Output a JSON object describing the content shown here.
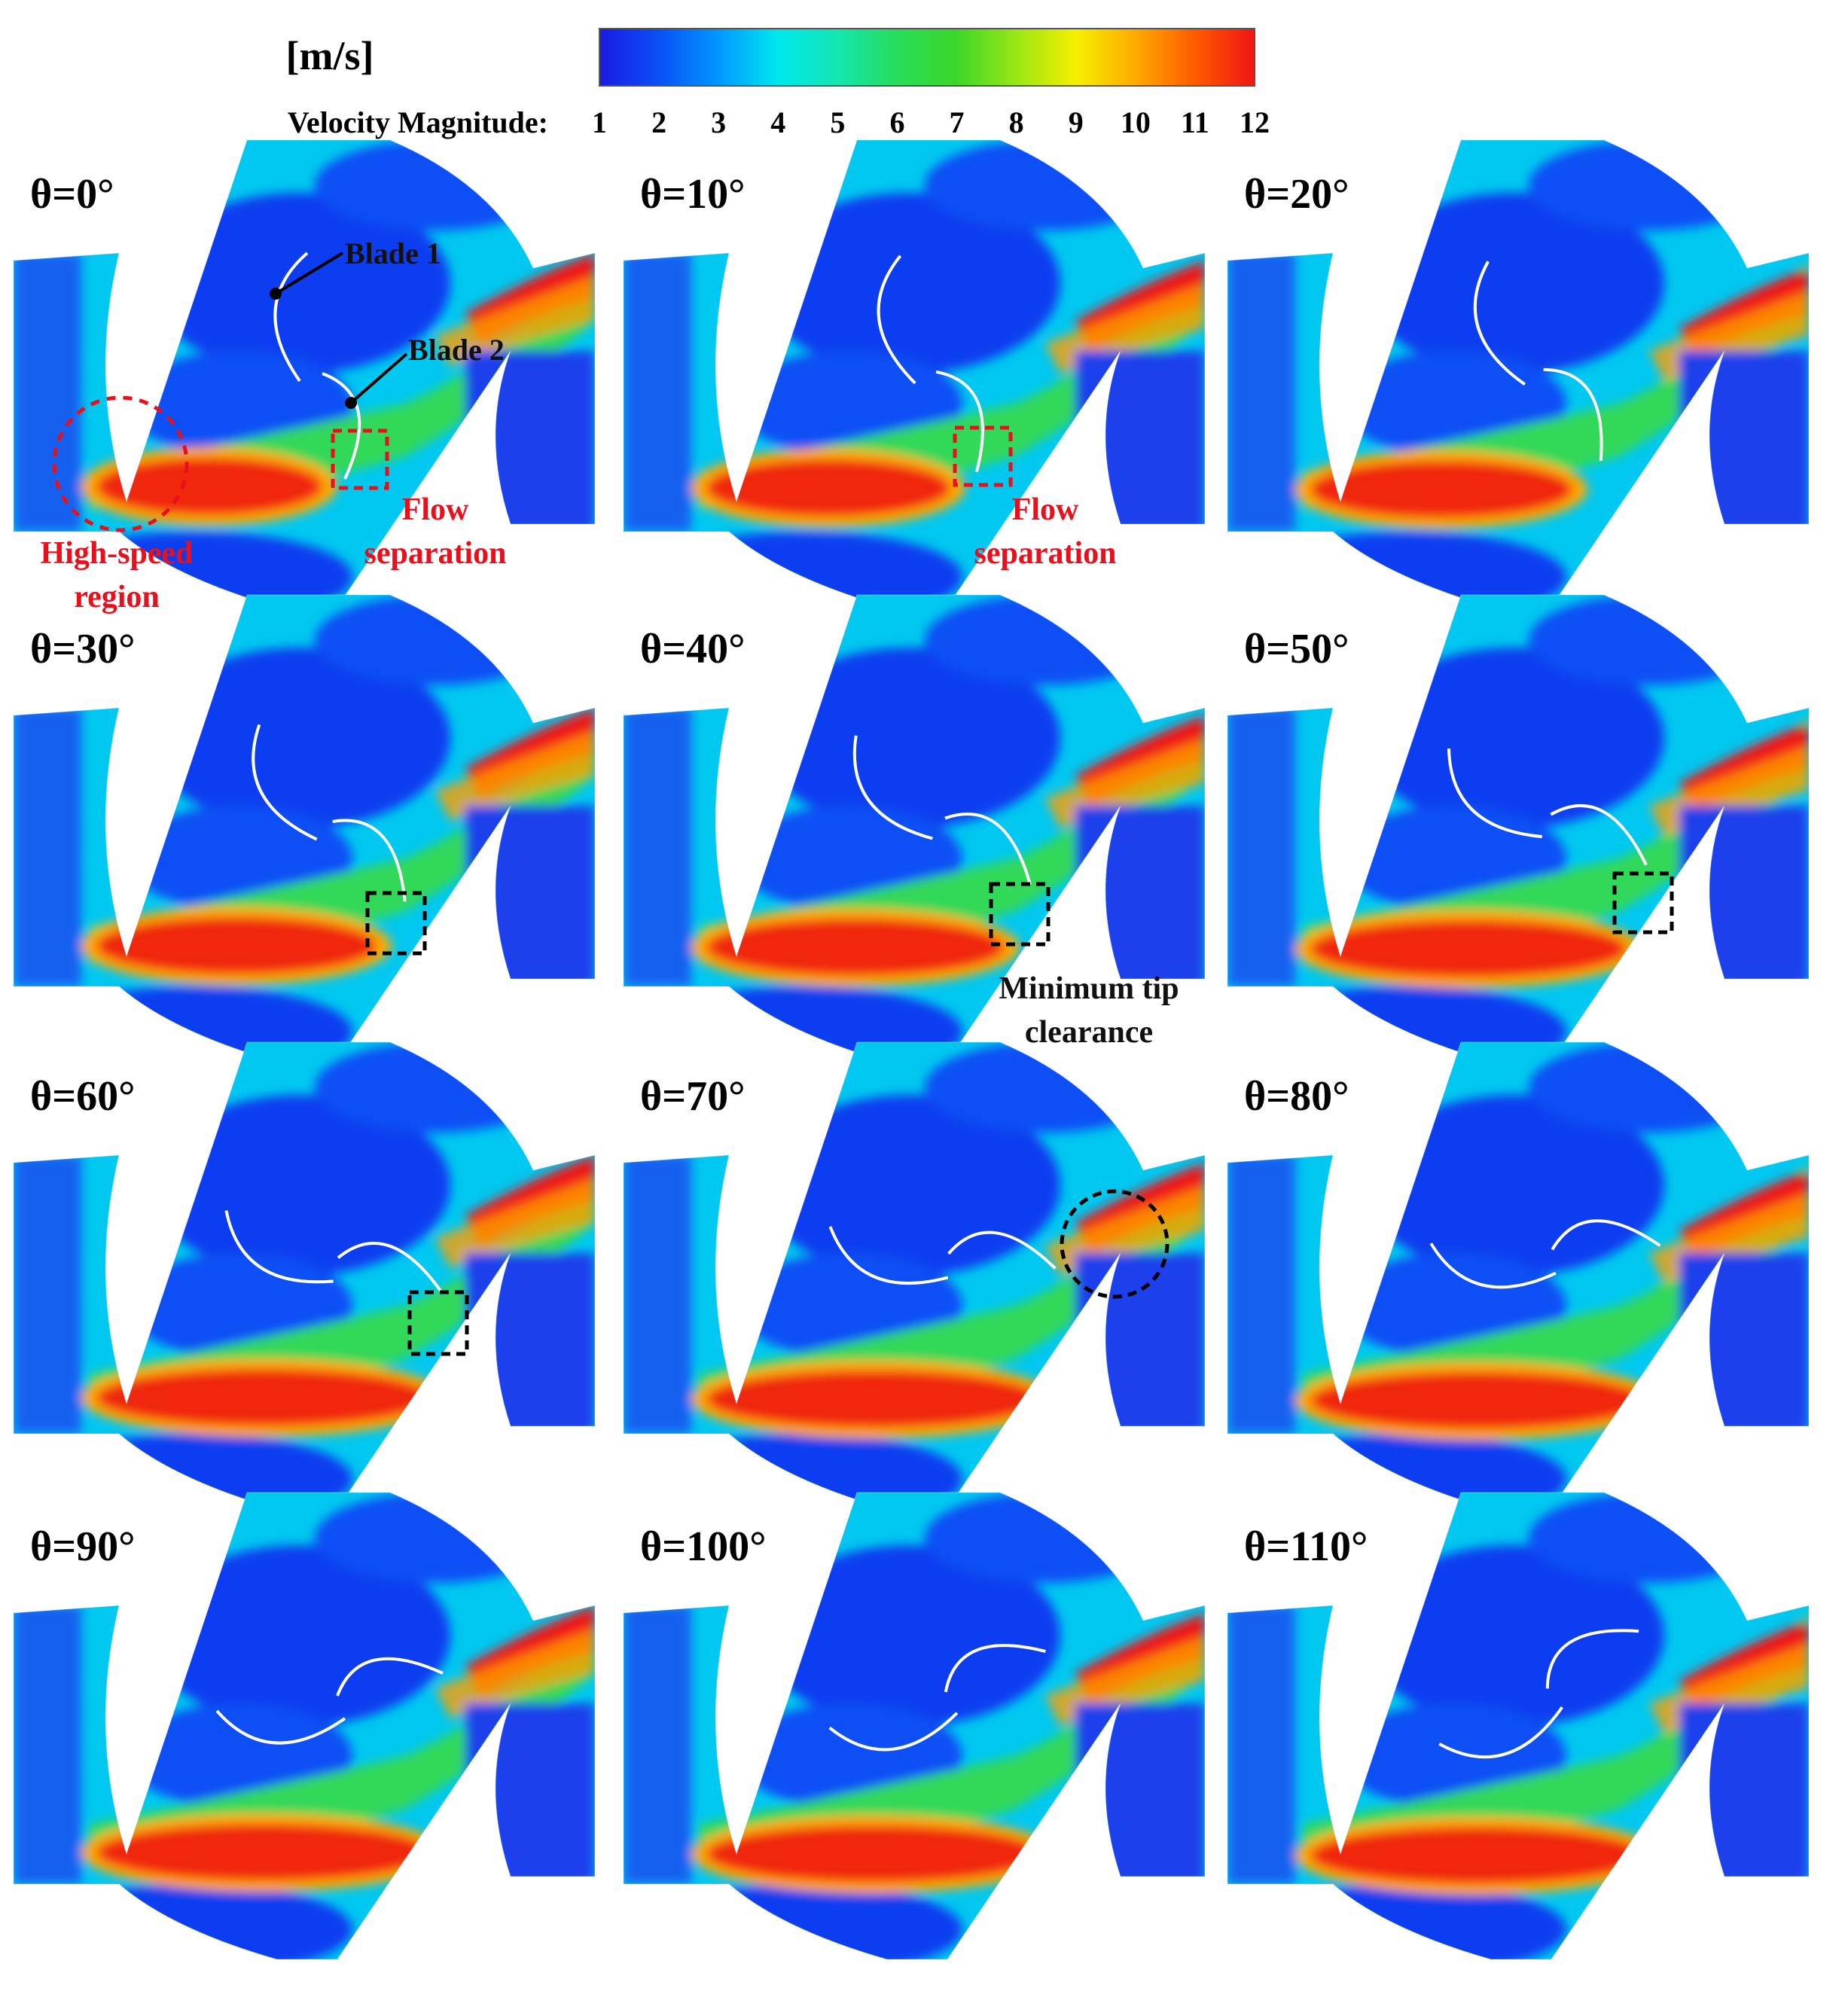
{
  "colorbar": {
    "unit": "[m/s]",
    "label": "Velocity Magnitude:",
    "ticks": [
      "1",
      "2",
      "3",
      "4",
      "5",
      "6",
      "7",
      "8",
      "9",
      "10",
      "11",
      "12"
    ],
    "min": 1,
    "max": 12,
    "colors": [
      "#1a1ae6",
      "#0a50f5",
      "#0098ff",
      "#00e8ee",
      "#14e6b0",
      "#28dc5a",
      "#3cd628",
      "#9ae614",
      "#f5f000",
      "#ffaa00",
      "#ff5a00",
      "#f01414"
    ]
  },
  "panels": [
    {
      "angle": "θ=0°",
      "rot": 0
    },
    {
      "angle": "θ=10°",
      "rot": 10
    },
    {
      "angle": "θ=20°",
      "rot": 20
    },
    {
      "angle": "θ=30°",
      "rot": 30
    },
    {
      "angle": "θ=40°",
      "rot": 40
    },
    {
      "angle": "θ=50°",
      "rot": 50
    },
    {
      "angle": "θ=60°",
      "rot": 60
    },
    {
      "angle": "θ=70°",
      "rot": 70
    },
    {
      "angle": "θ=80°",
      "rot": 80
    },
    {
      "angle": "θ=90°",
      "rot": 90
    },
    {
      "angle": "θ=100°",
      "rot": 100
    },
    {
      "angle": "θ=110°",
      "rot": 110
    }
  ],
  "annotations": {
    "blade1": "Blade 1",
    "blade2": "Blade 2",
    "high_speed_1": "High-speed",
    "high_speed_2": "region",
    "flow_sep_1": "Flow",
    "flow_sep_2": "separation",
    "min_tip_1": "Minimum tip",
    "min_tip_2": "clearance"
  }
}
